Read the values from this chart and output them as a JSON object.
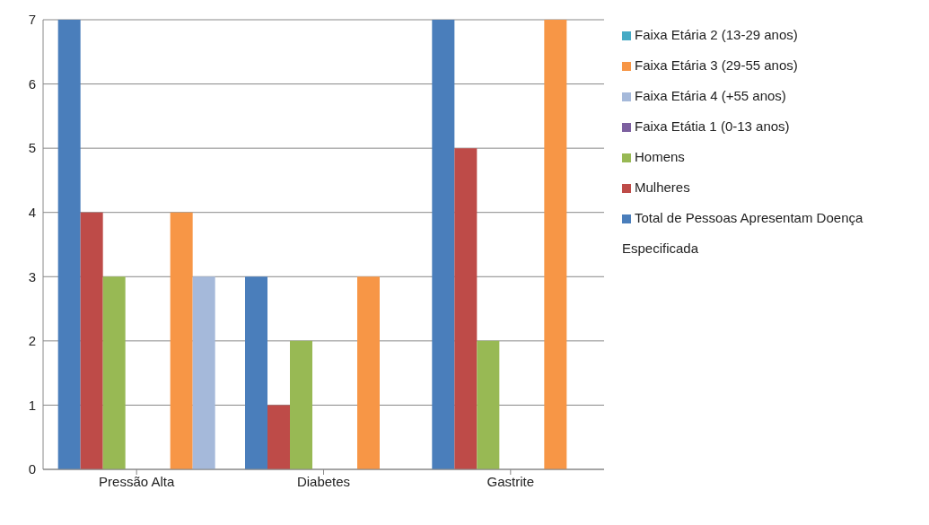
{
  "chart_data": {
    "type": "bar",
    "categories": [
      "Pressão Alta",
      "Diabetes",
      "Gastrite"
    ],
    "series": [
      {
        "name": "Total de Pessoas Apresentam Doença Especificada",
        "color": "#4a7ebb",
        "values": [
          7,
          3,
          7
        ]
      },
      {
        "name": "Mulheres",
        "color": "#be4b48",
        "values": [
          4,
          1,
          5
        ]
      },
      {
        "name": "Homens",
        "color": "#98b954",
        "values": [
          3,
          2,
          2
        ]
      },
      {
        "name": "Faixa Etátia 1 (0-13 anos)",
        "color": "#7d60a0",
        "values": [
          0,
          0,
          0
        ]
      },
      {
        "name": "Faixa Etária 2 (13-29 anos)",
        "color": "#46aac5",
        "values": [
          0,
          0,
          0
        ]
      },
      {
        "name": "Faixa Etária 3 (29-55 anos)",
        "color": "#f79646",
        "values": [
          4,
          3,
          7
        ]
      },
      {
        "name": "Faixa Etária 4 (+55 anos)",
        "color": "#a5b9da",
        "values": [
          3,
          0,
          0
        ]
      }
    ],
    "ylim": [
      0,
      7
    ],
    "yticks": [
      0,
      1,
      2,
      3,
      4,
      5,
      6,
      7
    ],
    "grid": "y",
    "legend": "right"
  }
}
